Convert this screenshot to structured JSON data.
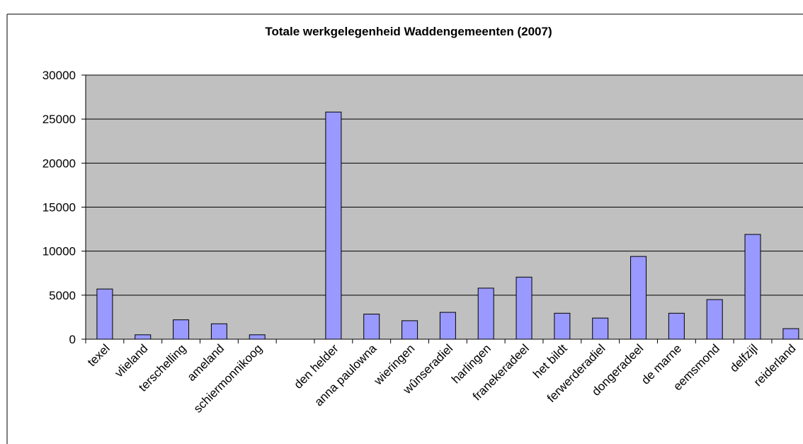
{
  "chart_data": {
    "type": "bar",
    "title": "Totale werkgelegenheid Waddengemeenten (2007)",
    "categories": [
      "texel",
      "vlieland",
      "terschelling",
      "ameland",
      "schiermonnikoog",
      null,
      "den helder",
      "anna paulowna",
      "wieringen",
      "wûnseradiel",
      "harlingen",
      "franekeradeel",
      "het bildt",
      "ferwerderadiel",
      "dongeradeel",
      "de marne",
      "eemsmond",
      "delfzijl",
      "reiderland"
    ],
    "values": [
      5700,
      500,
      2200,
      1750,
      500,
      null,
      25800,
      2850,
      2100,
      3050,
      5800,
      7050,
      2950,
      2400,
      9400,
      2950,
      4500,
      11900,
      1200
    ],
    "color": "#9999ff",
    "ylim": [
      0,
      30000
    ],
    "yticks": [
      0,
      5000,
      10000,
      15000,
      20000,
      25000,
      30000
    ],
    "grid": true
  }
}
